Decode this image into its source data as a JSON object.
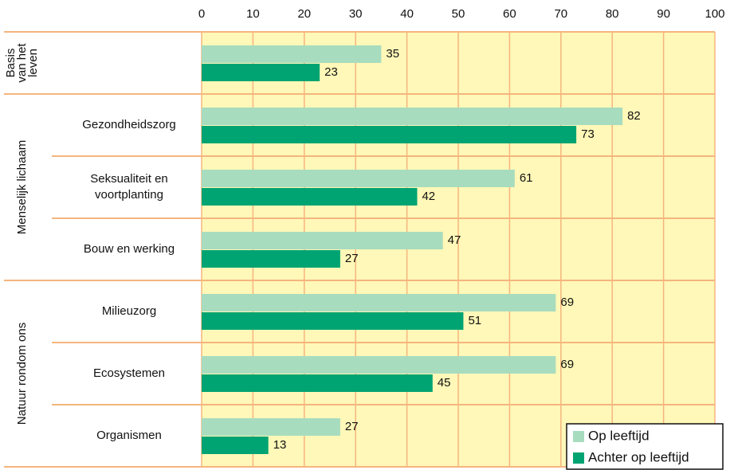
{
  "chart_data": {
    "type": "bar",
    "orientation": "horizontal",
    "groups": [
      {
        "label": [
          "Basis",
          "van het",
          "leven"
        ],
        "start": 0,
        "end": 0
      },
      {
        "label": [
          "Menselijk lichaam"
        ],
        "start": 1,
        "end": 3
      },
      {
        "label": [
          "Natuur rondom ons"
        ],
        "start": 4,
        "end": 6
      }
    ],
    "categories": [
      null,
      [
        "Gezondheidszorg"
      ],
      [
        "Seksualiteit en",
        "voortplanting"
      ],
      [
        "Bouw en werking"
      ],
      [
        "Milieuzorg"
      ],
      [
        "Ecosystemen"
      ],
      [
        "Organismen"
      ]
    ],
    "series": [
      {
        "name": "Op leeftijd",
        "color": "#a8dcbf",
        "values": [
          35,
          82,
          61,
          47,
          69,
          69,
          27
        ]
      },
      {
        "name": "Achter op leeftijd",
        "color": "#00a472",
        "values": [
          23,
          73,
          42,
          27,
          51,
          45,
          13
        ]
      }
    ],
    "xlim": [
      0,
      100
    ],
    "xticks": [
      0,
      10,
      20,
      30,
      40,
      50,
      60,
      70,
      80,
      90,
      100
    ],
    "grid": true,
    "legend": "lower right"
  }
}
